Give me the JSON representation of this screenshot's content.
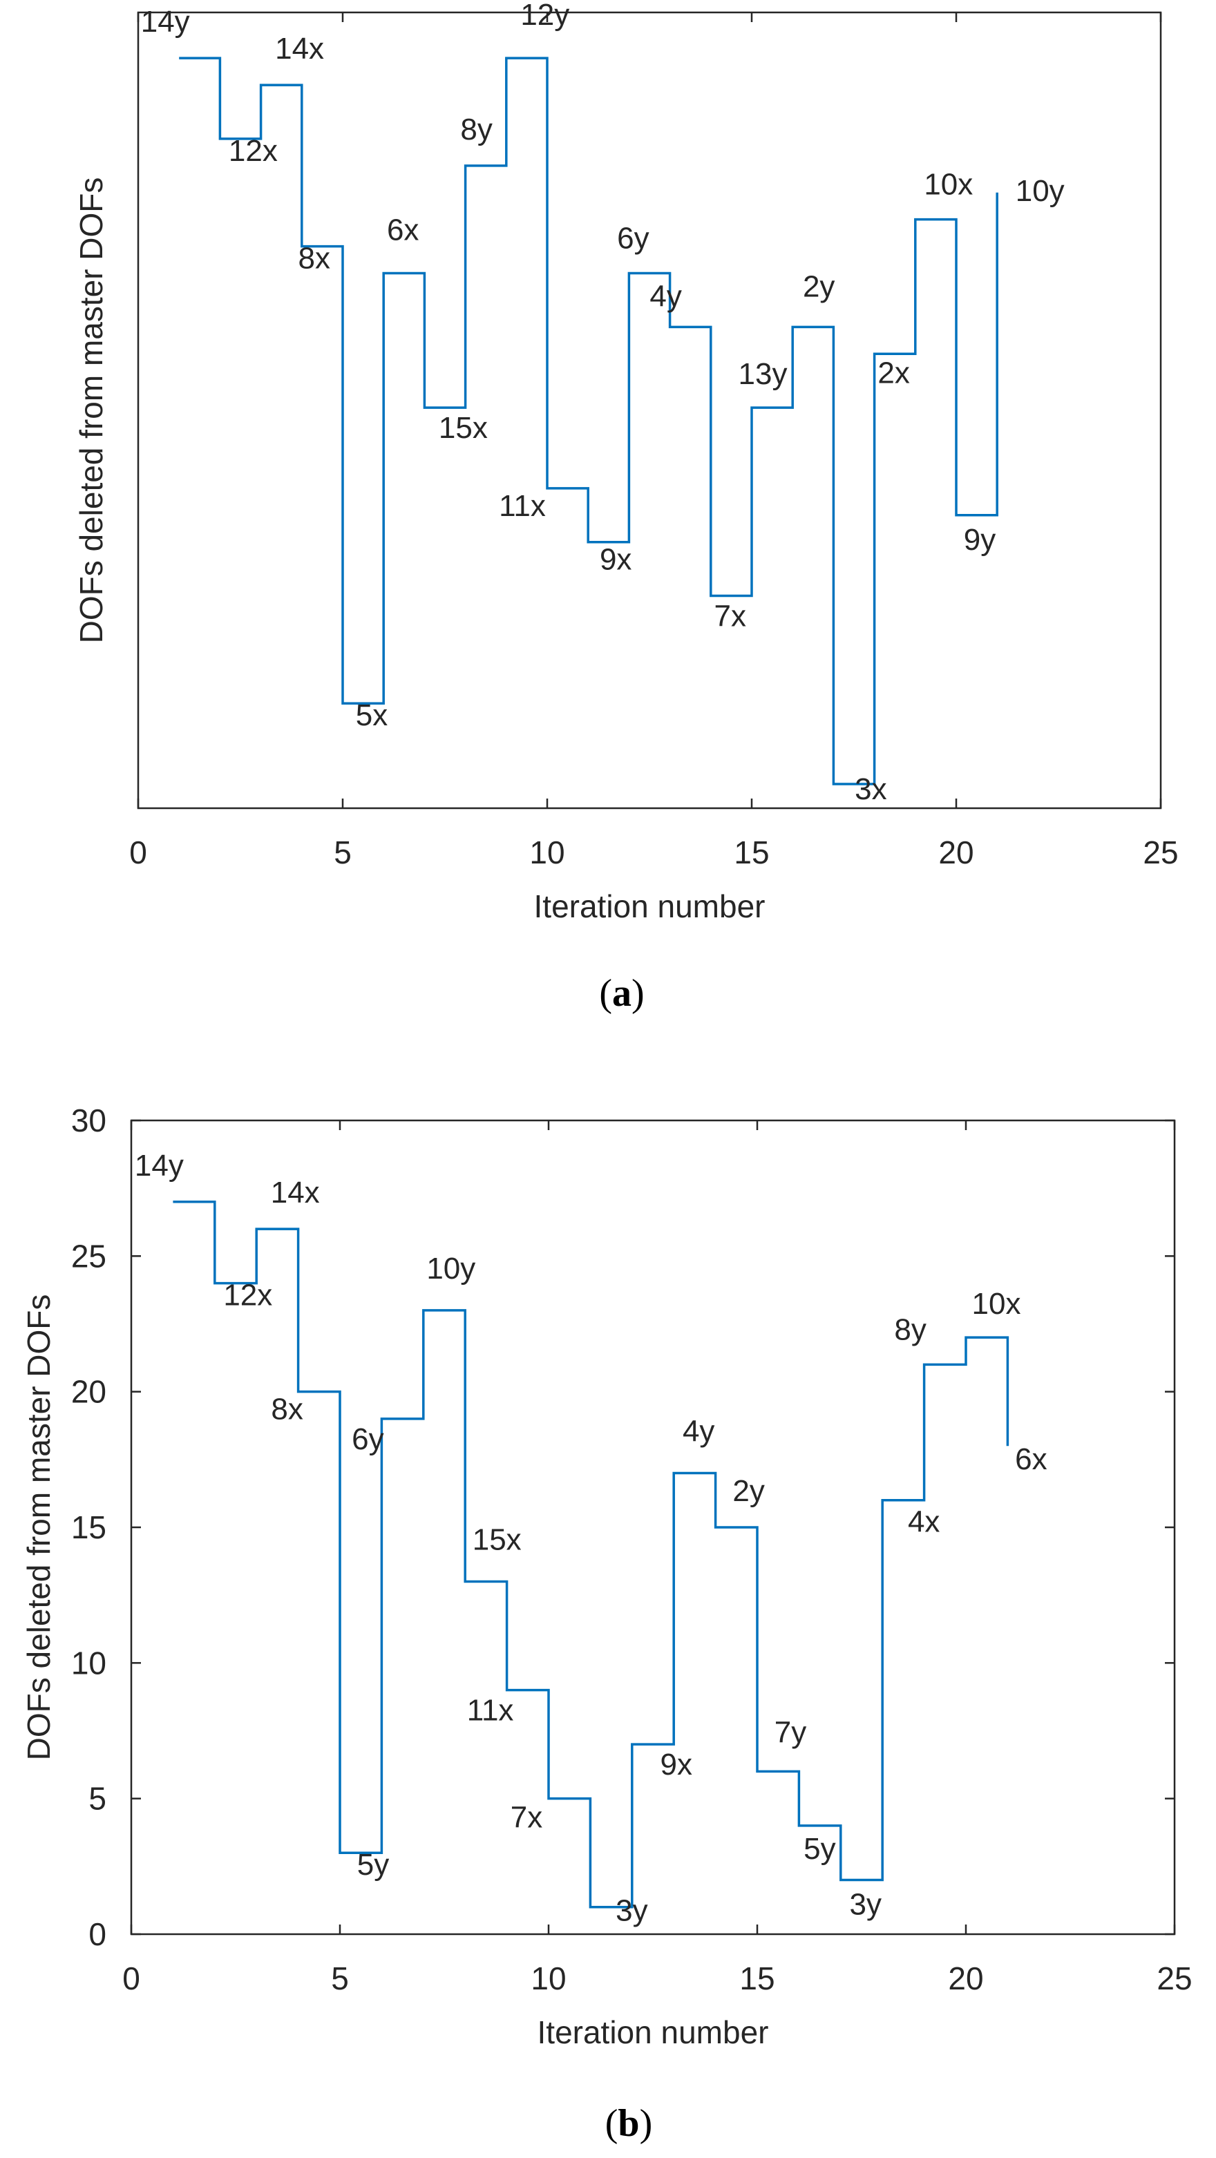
{
  "figure": {
    "panels": [
      {
        "label_open": "(",
        "label_letter": "a",
        "label_close": ")"
      },
      {
        "label_open": "(",
        "label_letter": "b",
        "label_close": ")"
      }
    ]
  },
  "chart_data": [
    {
      "type": "line",
      "step": "post",
      "title": "",
      "xlabel": "Iteration number",
      "ylabel": "DOFs deleted from master DOFs",
      "xlim": [
        0,
        25
      ],
      "ylim": [
        -0.9,
        28.7
      ],
      "xticks": [
        0,
        5,
        10,
        15,
        20,
        25
      ],
      "xtick_labels": [
        "0",
        "5",
        "10",
        "15",
        "20",
        "25"
      ],
      "yticks": [],
      "ytick_labels": [],
      "grid": false,
      "color": "#0072BD",
      "x": [
        1,
        2,
        3,
        4,
        5,
        6,
        7,
        8,
        9,
        10,
        11,
        12,
        13,
        14,
        15,
        16,
        17,
        18,
        19,
        20,
        21
      ],
      "y": [
        27,
        24,
        26,
        20,
        3,
        19,
        14,
        23,
        27,
        11,
        9,
        19,
        17,
        7,
        14,
        17,
        0,
        16,
        21,
        10,
        22
      ],
      "annotations": [
        "14y",
        "12x",
        "14x",
        "8x",
        "5x",
        "6x",
        "15x",
        "8y",
        "12y",
        "11x",
        "9x",
        "6y",
        "4y",
        "7x",
        "13y",
        "2y",
        "3x",
        "2x",
        "10x",
        "9y",
        "10y"
      ]
    },
    {
      "type": "line",
      "step": "post",
      "title": "",
      "xlabel": "Iteration number",
      "ylabel": "DOFs deleted from master DOFs",
      "xlim": [
        0,
        25
      ],
      "ylim": [
        0,
        30
      ],
      "xticks": [
        0,
        5,
        10,
        15,
        20,
        25
      ],
      "xtick_labels": [
        "0",
        "5",
        "10",
        "15",
        "20",
        "25"
      ],
      "yticks": [
        0,
        5,
        10,
        15,
        20,
        25,
        30
      ],
      "ytick_labels": [
        "0",
        "5",
        "10",
        "15",
        "20",
        "25",
        "30"
      ],
      "grid": false,
      "color": "#0072BD",
      "x": [
        1,
        2,
        3,
        4,
        5,
        6,
        7,
        8,
        9,
        10,
        11,
        12,
        13,
        14,
        15,
        16,
        17,
        18,
        19,
        20,
        21
      ],
      "y": [
        27,
        24,
        26,
        20,
        3,
        19,
        23,
        13,
        9,
        5,
        1,
        7,
        17,
        15,
        6,
        4,
        2,
        16,
        21,
        22,
        18
      ],
      "annotations": [
        "14y",
        "12x",
        "14x",
        "8x",
        "5y",
        "6y",
        "10y",
        "15x",
        "11x",
        "7x",
        "3y",
        "9x",
        "4y",
        "2y",
        "7y",
        "5y",
        "3y",
        "4x",
        "8y",
        "10x",
        "6x"
      ]
    }
  ]
}
